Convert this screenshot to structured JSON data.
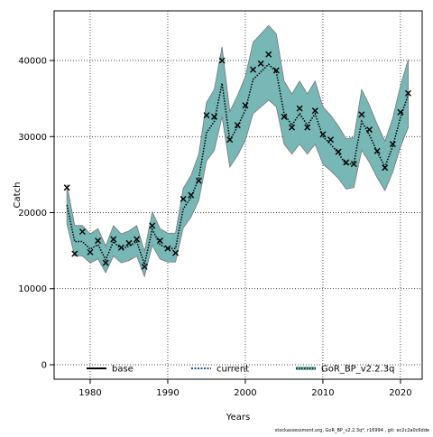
{
  "chart_data": {
    "type": "line",
    "xlabel": "Years",
    "ylabel": "Catch",
    "footer": "stockassessment.org, GoR_BP_v2.2.3q*, r16994 , git: ec2c2a0c6dde",
    "x": [
      1977,
      1978,
      1979,
      1980,
      1981,
      1982,
      1983,
      1984,
      1985,
      1986,
      1987,
      1988,
      1989,
      1990,
      1991,
      1992,
      1993,
      1994,
      1995,
      1996,
      1997,
      1998,
      1999,
      2000,
      2001,
      2002,
      2003,
      2004,
      2005,
      2006,
      2007,
      2008,
      2009,
      2010,
      2011,
      2012,
      2013,
      2014,
      2015,
      2016,
      2017,
      2018,
      2019,
      2020,
      2021
    ],
    "observed": [
      23300,
      14600,
      17500,
      14800,
      16300,
      13400,
      16500,
      15400,
      16000,
      16500,
      12900,
      18300,
      16300,
      15300,
      14700,
      21800,
      22300,
      24200,
      32800,
      32600,
      40000,
      29600,
      31500,
      34100,
      38800,
      39600,
      40800,
      38700,
      32600,
      31200,
      33700,
      31200,
      33400,
      30300,
      29600,
      28000,
      26600,
      26400,
      32900,
      30900,
      28100,
      25900,
      29000,
      33200,
      35700
    ],
    "estimate": [
      21000,
      16200,
      16200,
      15200,
      15800,
      13800,
      16200,
      15200,
      15600,
      16200,
      13200,
      17800,
      15800,
      15300,
      15300,
      20500,
      22000,
      24500,
      30500,
      32000,
      37000,
      29500,
      31300,
      33500,
      37500,
      38500,
      39500,
      38500,
      33000,
      31500,
      33000,
      31500,
      33000,
      30000,
      29000,
      27800,
      26300,
      26500,
      32000,
      30200,
      28000,
      26000,
      28700,
      32500,
      35500
    ],
    "lower": [
      18500,
      14300,
      14300,
      13400,
      13900,
      12100,
      14300,
      13400,
      13700,
      14300,
      11600,
      15700,
      13900,
      13500,
      13500,
      18000,
      19400,
      21600,
      26800,
      28200,
      32600,
      26000,
      27500,
      29500,
      33000,
      33900,
      34800,
      33900,
      29000,
      27700,
      29000,
      27700,
      29000,
      26400,
      25500,
      24500,
      23100,
      23300,
      28200,
      26600,
      24600,
      22900,
      25300,
      28600,
      31200
    ],
    "upper": [
      23700,
      18300,
      18300,
      17200,
      17900,
      15600,
      18300,
      17200,
      17600,
      18300,
      14900,
      20100,
      17900,
      17300,
      17300,
      23200,
      24900,
      27700,
      34500,
      36200,
      41800,
      33300,
      35400,
      37900,
      42400,
      43500,
      44600,
      43500,
      37300,
      35600,
      37300,
      35600,
      37300,
      33900,
      32800,
      31400,
      29700,
      29900,
      36200,
      34100,
      31600,
      29400,
      32400,
      36700,
      40100
    ],
    "band_color": "#77b7b6",
    "legend": [
      "base",
      "current",
      "GoR_BP_v2.2.3q"
    ],
    "legend_colors": [
      "#000000",
      "#1f4e9a",
      "#77b7b6"
    ],
    "xlim": [
      1975.35,
      2022.8
    ],
    "ylim": [
      -1900,
      46530
    ],
    "xticks": [
      1980,
      1990,
      2000,
      2010,
      2020
    ],
    "yticks": [
      0,
      10000,
      20000,
      30000,
      40000
    ],
    "grid": true
  }
}
